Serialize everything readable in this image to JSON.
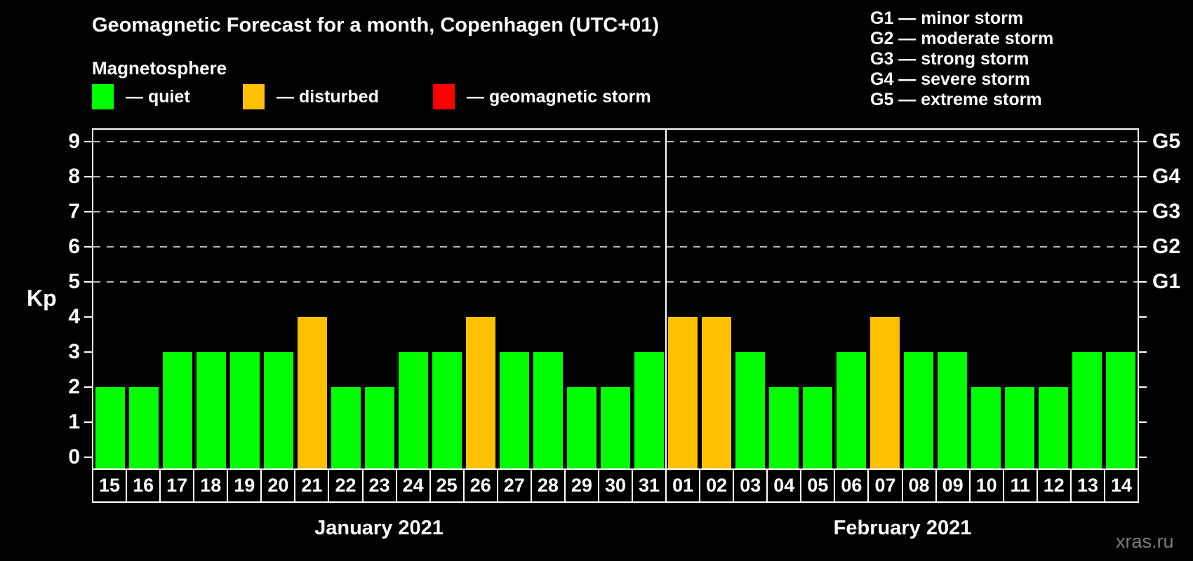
{
  "title": "Geomagnetic Forecast for a month, Copenhagen (UTC+01)",
  "legend": {
    "heading": "Magnetosphere",
    "items": [
      {
        "name": "quiet",
        "label": "— quiet",
        "color": "#00ff00"
      },
      {
        "name": "disturbed",
        "label": "— disturbed",
        "color": "#ffc000"
      },
      {
        "name": "geomagnetic-storm",
        "label": "— geomagnetic storm",
        "color": "#ff0000"
      }
    ]
  },
  "storm_scale": [
    "G1 — minor storm",
    "G2 — moderate storm",
    "G3 — strong storm",
    "G4 — severe storm",
    "G5 — extreme storm"
  ],
  "watermark": "xras.ru",
  "chart_data": {
    "type": "bar",
    "title": "Geomagnetic Forecast for a month, Copenhagen (UTC+01)",
    "ylabel": "Kp",
    "ylim": [
      0,
      9
    ],
    "yticks": [
      0,
      1,
      2,
      3,
      4,
      5,
      6,
      7,
      8,
      9
    ],
    "gridlines_at_kp": [
      5,
      6,
      7,
      8,
      9
    ],
    "grid": "dashed, horizontal, at G-storm levels only",
    "right_axis": {
      "5": "G1",
      "6": "G2",
      "7": "G3",
      "8": "G4",
      "9": "G5"
    },
    "legend_position": "top-left",
    "months": [
      {
        "label": "January 2021",
        "days": 17
      },
      {
        "label": "February 2021",
        "days": 14
      }
    ],
    "status_colors": {
      "quiet": "#00ff00",
      "disturbed": "#ffc000",
      "storm": "#ff0000"
    },
    "bars": [
      {
        "date": "15",
        "month": "January 2021",
        "kp": 2,
        "status": "quiet"
      },
      {
        "date": "16",
        "month": "January 2021",
        "kp": 2,
        "status": "quiet"
      },
      {
        "date": "17",
        "month": "January 2021",
        "kp": 3,
        "status": "quiet"
      },
      {
        "date": "18",
        "month": "January 2021",
        "kp": 3,
        "status": "quiet"
      },
      {
        "date": "19",
        "month": "January 2021",
        "kp": 3,
        "status": "quiet"
      },
      {
        "date": "20",
        "month": "January 2021",
        "kp": 3,
        "status": "quiet"
      },
      {
        "date": "21",
        "month": "January 2021",
        "kp": 4,
        "status": "disturbed"
      },
      {
        "date": "22",
        "month": "January 2021",
        "kp": 2,
        "status": "quiet"
      },
      {
        "date": "23",
        "month": "January 2021",
        "kp": 2,
        "status": "quiet"
      },
      {
        "date": "24",
        "month": "January 2021",
        "kp": 3,
        "status": "quiet"
      },
      {
        "date": "25",
        "month": "January 2021",
        "kp": 3,
        "status": "quiet"
      },
      {
        "date": "26",
        "month": "January 2021",
        "kp": 4,
        "status": "disturbed"
      },
      {
        "date": "27",
        "month": "January 2021",
        "kp": 3,
        "status": "quiet"
      },
      {
        "date": "28",
        "month": "January 2021",
        "kp": 3,
        "status": "quiet"
      },
      {
        "date": "29",
        "month": "January 2021",
        "kp": 2,
        "status": "quiet"
      },
      {
        "date": "30",
        "month": "January 2021",
        "kp": 2,
        "status": "quiet"
      },
      {
        "date": "31",
        "month": "January 2021",
        "kp": 3,
        "status": "quiet"
      },
      {
        "date": "01",
        "month": "February 2021",
        "kp": 4,
        "status": "disturbed"
      },
      {
        "date": "02",
        "month": "February 2021",
        "kp": 4,
        "status": "disturbed"
      },
      {
        "date": "03",
        "month": "February 2021",
        "kp": 3,
        "status": "quiet"
      },
      {
        "date": "04",
        "month": "February 2021",
        "kp": 2,
        "status": "quiet"
      },
      {
        "date": "05",
        "month": "February 2021",
        "kp": 2,
        "status": "quiet"
      },
      {
        "date": "06",
        "month": "February 2021",
        "kp": 3,
        "status": "quiet"
      },
      {
        "date": "07",
        "month": "February 2021",
        "kp": 4,
        "status": "disturbed"
      },
      {
        "date": "08",
        "month": "February 2021",
        "kp": 3,
        "status": "quiet"
      },
      {
        "date": "09",
        "month": "February 2021",
        "kp": 3,
        "status": "quiet"
      },
      {
        "date": "10",
        "month": "February 2021",
        "kp": 2,
        "status": "quiet"
      },
      {
        "date": "11",
        "month": "February 2021",
        "kp": 2,
        "status": "quiet"
      },
      {
        "date": "12",
        "month": "February 2021",
        "kp": 2,
        "status": "quiet"
      },
      {
        "date": "13",
        "month": "February 2021",
        "kp": 3,
        "status": "quiet"
      },
      {
        "date": "14",
        "month": "February 2021",
        "kp": 3,
        "status": "quiet"
      }
    ]
  }
}
